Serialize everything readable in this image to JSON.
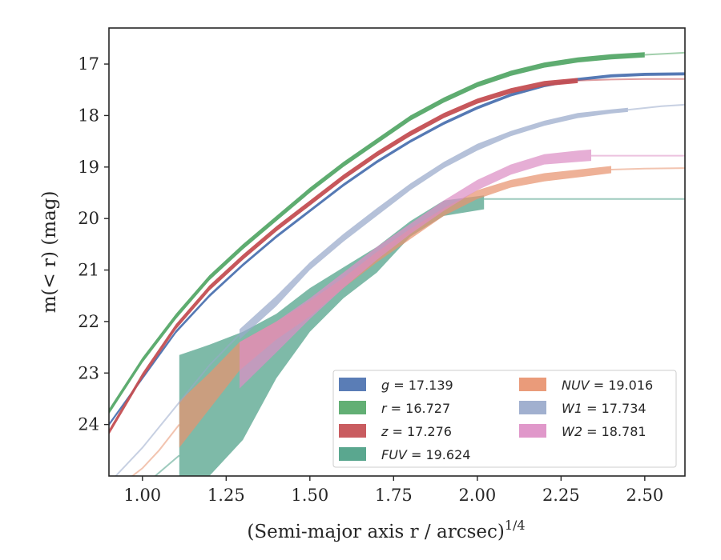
{
  "chart_data": {
    "type": "line",
    "xlabel": "(Semi-major axis r / arcsec)",
    "xlabel_sup": "1/4",
    "ylabel": "m(< r) (mag)",
    "xlim": [
      0.9,
      2.62
    ],
    "ylim": [
      25.0,
      16.3
    ],
    "y_inverted": true,
    "xticks": [
      1.0,
      1.25,
      1.5,
      1.75,
      2.0,
      2.25,
      2.5
    ],
    "xtick_labels": [
      "1.00",
      "1.25",
      "1.50",
      "1.75",
      "2.00",
      "2.25",
      "2.50"
    ],
    "yticks": [
      17,
      18,
      19,
      20,
      21,
      22,
      23,
      24
    ],
    "ytick_labels": [
      "17",
      "18",
      "19",
      "20",
      "21",
      "22",
      "23",
      "24"
    ],
    "grid": false,
    "legend_position": "bottom-right",
    "series": [
      {
        "name": "g = 17.139",
        "name_var": "g",
        "name_value": "17.139",
        "color": "#4c72b0",
        "band_x": [
          0.9,
          1.0,
          1.1,
          1.2,
          1.3,
          1.4,
          1.5,
          1.6,
          1.7,
          1.8,
          1.9,
          2.0,
          2.1,
          2.2,
          2.3,
          2.4,
          2.5,
          2.62
        ],
        "band_y": [
          24.0,
          23.1,
          22.2,
          21.5,
          20.9,
          20.35,
          19.85,
          19.35,
          18.9,
          18.5,
          18.15,
          17.85,
          17.6,
          17.42,
          17.3,
          17.23,
          17.2,
          17.19
        ],
        "band_width": 0.06
      },
      {
        "name": "r = 16.727",
        "name_var": "r",
        "name_value": "16.727",
        "color": "#55a868",
        "band_x": [
          0.9,
          1.0,
          1.1,
          1.2,
          1.3,
          1.4,
          1.5,
          1.6,
          1.7,
          1.8,
          1.9,
          2.0,
          2.1,
          2.2,
          2.3,
          2.4,
          2.5
        ],
        "band_y": [
          23.75,
          22.75,
          21.9,
          21.15,
          20.55,
          20.0,
          19.45,
          18.95,
          18.5,
          18.05,
          17.7,
          17.4,
          17.18,
          17.02,
          16.92,
          16.86,
          16.82
        ],
        "band_width": 0.1,
        "tail_x": [
          2.5,
          2.62
        ],
        "tail_y": [
          16.82,
          16.78
        ]
      },
      {
        "name": "z = 17.276",
        "name_var": "z",
        "name_value": "17.276",
        "color": "#c44e52",
        "band_x": [
          0.9,
          1.0,
          1.1,
          1.2,
          1.3,
          1.4,
          1.5,
          1.6,
          1.7,
          1.8,
          1.9,
          2.0,
          2.1,
          2.2,
          2.3
        ],
        "band_y": [
          24.15,
          23.05,
          22.1,
          21.35,
          20.75,
          20.2,
          19.7,
          19.2,
          18.75,
          18.35,
          18.0,
          17.72,
          17.52,
          17.38,
          17.32
        ],
        "band_width": 0.1,
        "tail_x": [
          2.3,
          2.4,
          2.5,
          2.62
        ],
        "tail_y": [
          17.32,
          17.3,
          17.29,
          17.29
        ]
      },
      {
        "name": "FUV = 19.624",
        "name_var": "FUV",
        "name_value": "19.624",
        "color": "#4c9f86",
        "band_x": [
          1.11,
          1.2,
          1.3,
          1.4,
          1.5,
          1.6,
          1.7,
          1.8,
          1.9,
          2.02
        ],
        "band_upper": [
          22.65,
          22.45,
          22.2,
          21.85,
          21.35,
          20.95,
          20.55,
          20.05,
          19.65,
          19.55
        ],
        "band_lower": [
          25.0,
          25.0,
          24.3,
          23.1,
          22.2,
          21.55,
          21.05,
          20.35,
          19.95,
          19.82
        ],
        "tail_x": [
          2.02,
          2.62
        ],
        "tail_y": [
          19.62,
          19.62
        ],
        "lead_x": [
          1.02,
          1.11
        ],
        "lead_y": [
          25.1,
          24.6
        ]
      },
      {
        "name": "NUV = 19.016",
        "name_var": "NUV",
        "name_value": "19.016",
        "color": "#e8936f",
        "band_x": [
          1.11,
          1.2,
          1.29,
          1.4,
          1.5,
          1.6,
          1.7,
          1.8,
          1.9,
          2.0,
          2.1,
          2.2,
          2.3,
          2.4
        ],
        "band_upper": [
          23.55,
          23.0,
          22.4,
          22.0,
          21.6,
          21.15,
          20.65,
          20.2,
          19.8,
          19.45,
          19.25,
          19.12,
          19.05,
          18.98
        ],
        "band_lower": [
          24.45,
          23.7,
          22.95,
          22.35,
          21.9,
          21.35,
          20.85,
          20.4,
          19.95,
          19.62,
          19.4,
          19.28,
          19.2,
          19.12
        ],
        "tail_x": [
          2.4,
          2.5,
          2.62
        ],
        "tail_y": [
          19.05,
          19.03,
          19.02
        ],
        "lead_x": [
          0.95,
          1.0,
          1.05,
          1.11
        ],
        "lead_y": [
          25.1,
          24.85,
          24.5,
          24.0
        ]
      },
      {
        "name": "W1 = 17.734",
        "name_var": "W1",
        "name_value": "17.734",
        "color": "#99a9cb",
        "band_x": [
          1.29,
          1.4,
          1.5,
          1.6,
          1.7,
          1.8,
          1.9,
          2.0,
          2.1,
          2.2,
          2.3,
          2.4,
          2.45
        ],
        "band_upper": [
          22.15,
          21.5,
          20.85,
          20.3,
          19.8,
          19.32,
          18.9,
          18.55,
          18.3,
          18.1,
          17.95,
          17.88,
          17.85
        ],
        "band_lower": [
          22.35,
          21.7,
          21.0,
          20.45,
          19.95,
          19.45,
          19.02,
          18.68,
          18.4,
          18.2,
          18.05,
          17.96,
          17.93
        ],
        "tail_x": [
          2.45,
          2.55,
          2.62
        ],
        "tail_y": [
          17.89,
          17.82,
          17.79
        ],
        "lead_x": [
          0.92,
          1.0,
          1.1,
          1.2,
          1.29
        ],
        "lead_y": [
          25.0,
          24.45,
          23.65,
          22.85,
          22.25
        ]
      },
      {
        "name": "W2 = 18.781",
        "name_var": "W2",
        "name_value": "18.781",
        "color": "#dd8fc5",
        "band_x": [
          1.29,
          1.4,
          1.5,
          1.6,
          1.7,
          1.8,
          1.9,
          2.0,
          2.1,
          2.2,
          2.3,
          2.34
        ],
        "band_upper": [
          22.4,
          22.0,
          21.55,
          21.05,
          20.55,
          20.1,
          19.65,
          19.25,
          18.95,
          18.75,
          18.68,
          18.66
        ],
        "band_lower": [
          23.3,
          22.6,
          21.95,
          21.35,
          20.8,
          20.3,
          19.85,
          19.45,
          19.15,
          18.95,
          18.9,
          18.88
        ],
        "tail_x": [
          2.34,
          2.45,
          2.62
        ],
        "tail_y": [
          18.78,
          18.78,
          18.78
        ]
      }
    ]
  }
}
